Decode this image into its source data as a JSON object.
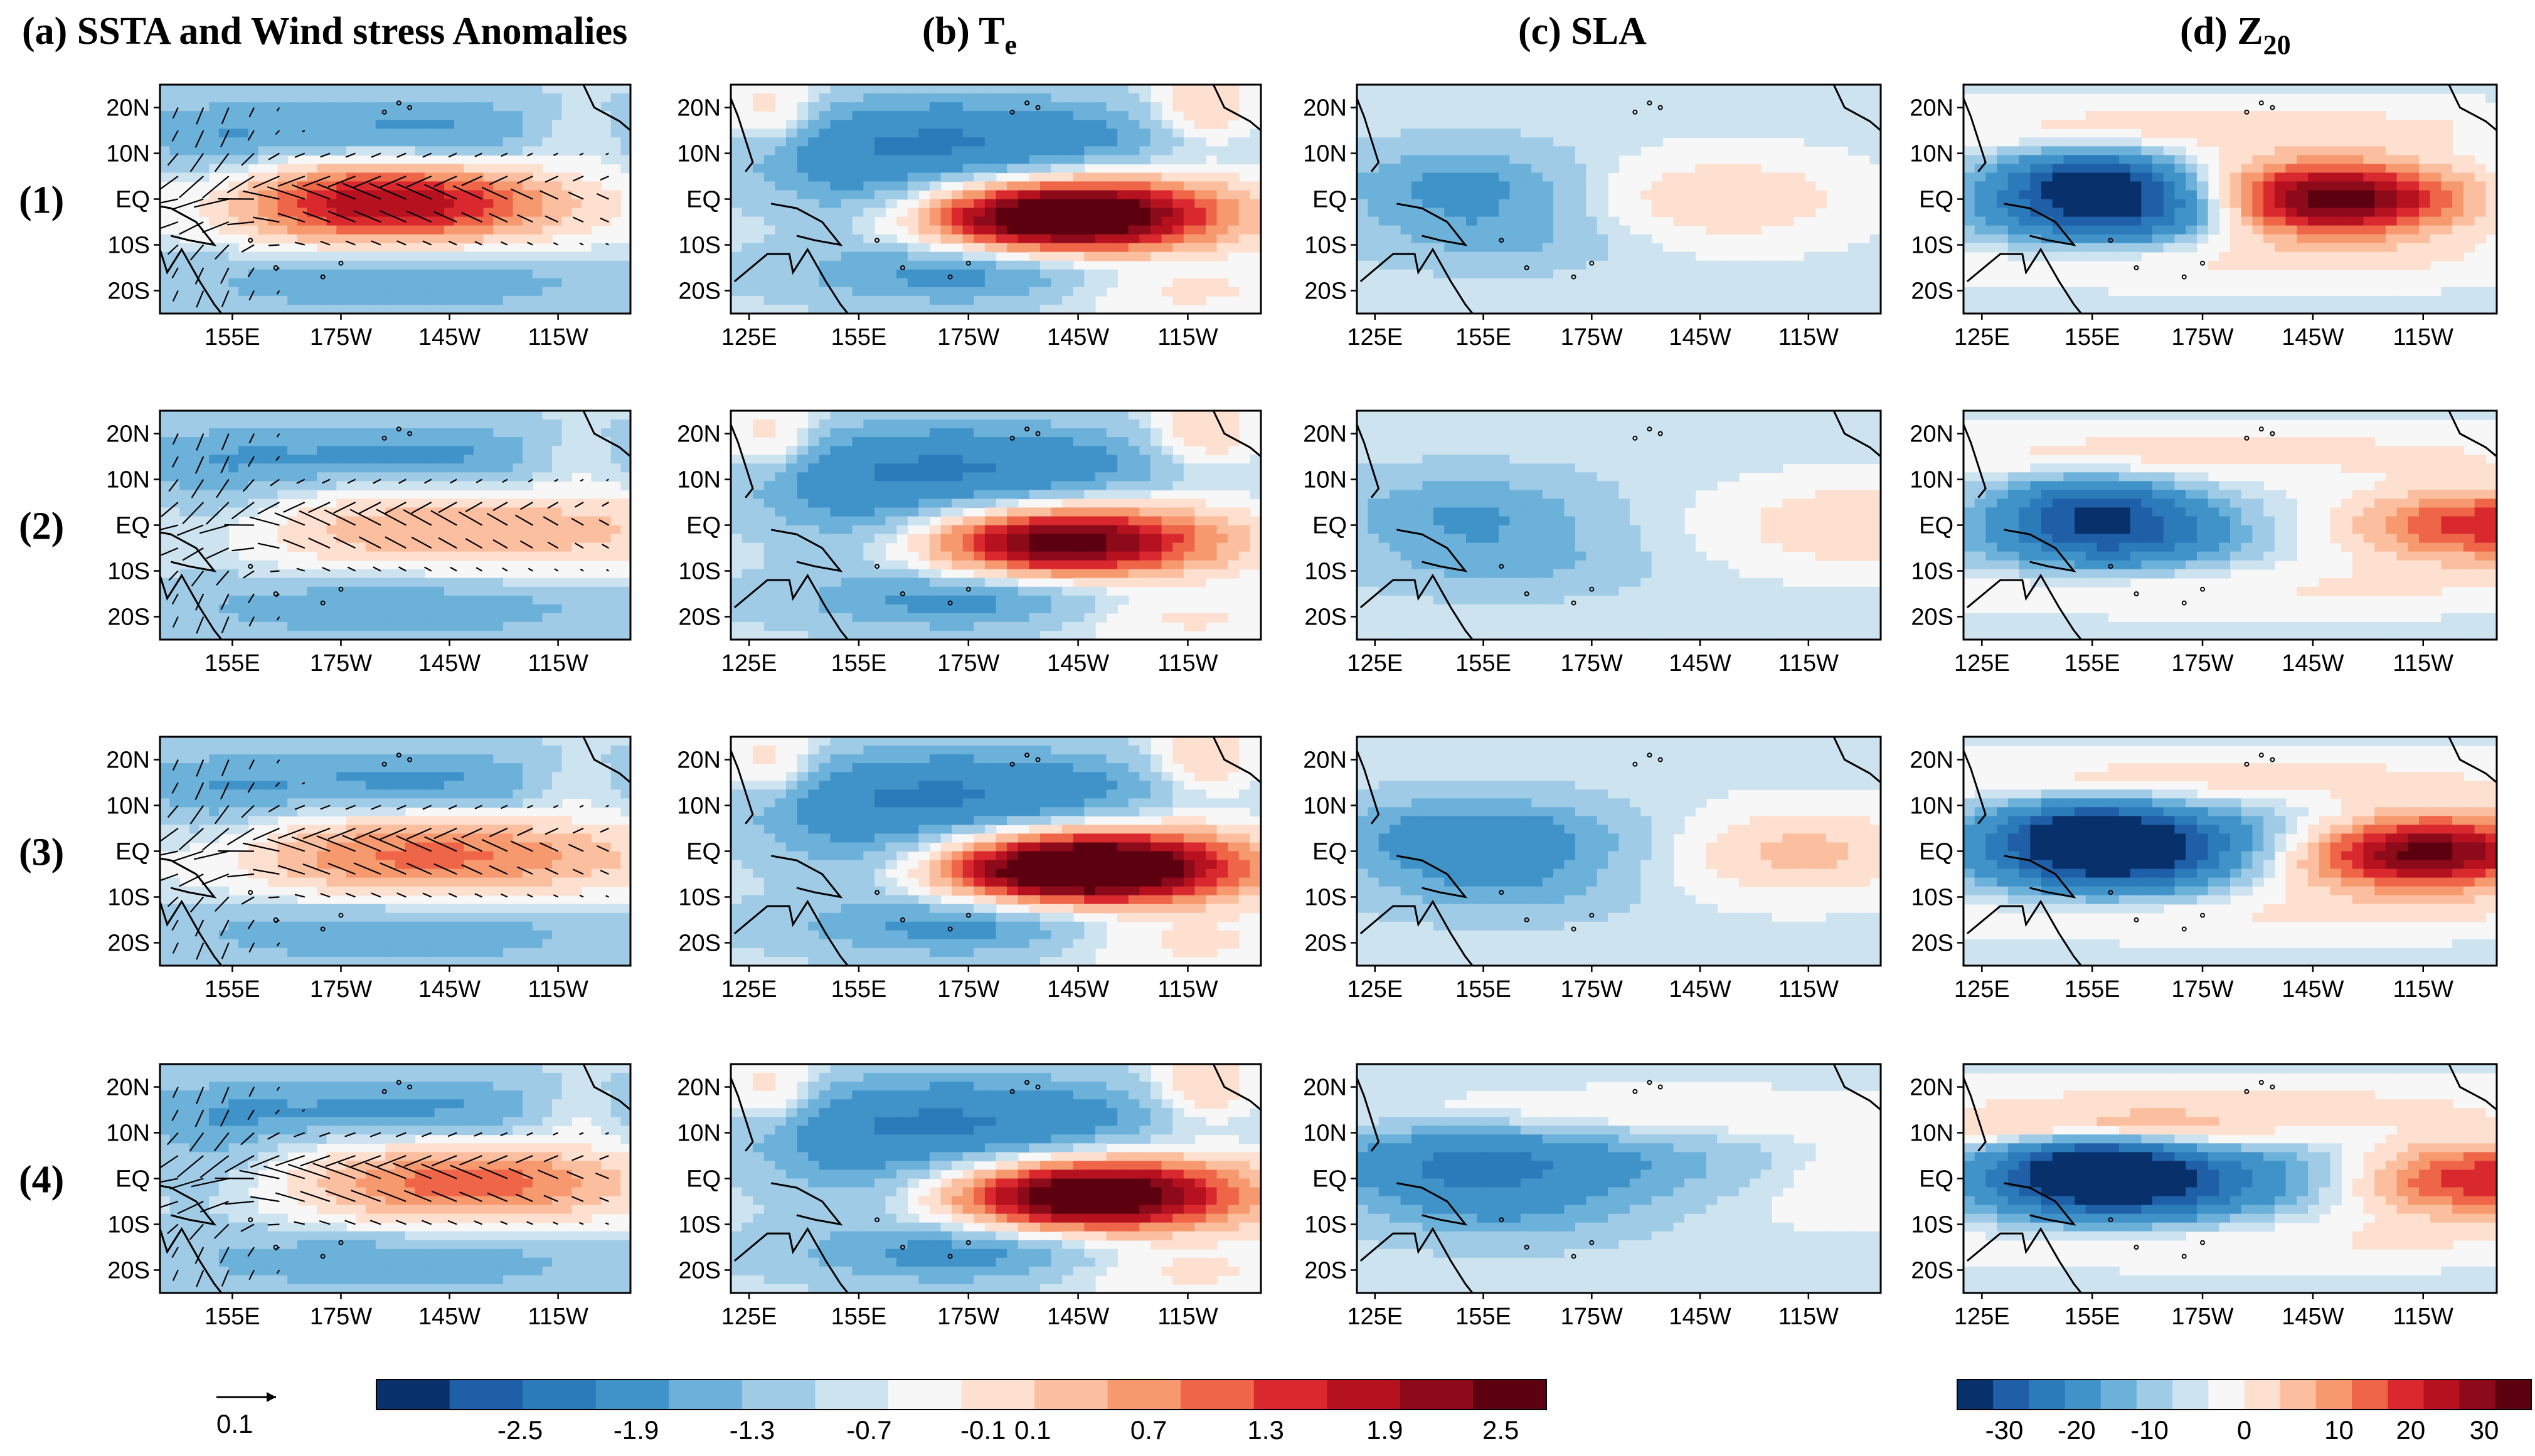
{
  "figure": {
    "columns": [
      {
        "id": "a",
        "prefix": "(a) ",
        "title": "SSTA and Wind stress Anomalies",
        "sub": ""
      },
      {
        "id": "b",
        "prefix": "(b) ",
        "title": "T",
        "sub": "e"
      },
      {
        "id": "c",
        "prefix": "(c) ",
        "title": "SLA",
        "sub": ""
      },
      {
        "id": "d",
        "prefix": "(d) ",
        "title": "Z",
        "sub": "20"
      }
    ],
    "rows": [
      "(1)",
      "(2)",
      "(3)",
      "(4)"
    ],
    "lat_ticks": [
      "20N",
      "10N",
      "EQ",
      "10S",
      "20S"
    ],
    "lon_ticks_a": [
      "155E",
      "175W",
      "145W",
      "115W"
    ],
    "lon_ticks_bcd": [
      "125E",
      "155E",
      "175W",
      "145W",
      "115W"
    ],
    "vector_key": "0.1"
  },
  "chart_data": [
    {
      "type": "heatmap",
      "panel": "SSTA and wind stress anomalies (column a, rows 1-4)",
      "variable": "SSTA",
      "colorbar_levels": [
        -2.5,
        -1.9,
        -1.3,
        -0.7,
        -0.1,
        0.1,
        0.7,
        1.3,
        1.9,
        2.5
      ],
      "colorbar_labels": [
        "-2.5",
        "-1.9",
        "-1.3",
        "-0.7",
        "-0.1",
        "0.1",
        "0.7",
        "1.3",
        "1.9",
        "2.5"
      ],
      "colorbar_colors": [
        "#08306b",
        "#1f5fa8",
        "#2b7bba",
        "#3f93c9",
        "#6cb1da",
        "#9fcbe6",
        "#cde3f0",
        "#f7f7f7",
        "#fde0cf",
        "#fbbfa0",
        "#f7996f",
        "#ef6548",
        "#d9292e",
        "#b5111f",
        "#8c0a1a",
        "#5c0010"
      ],
      "rows": [
        {
          "row": "(1)",
          "warm_peak_lon": "175W-160W",
          "max_value": 2.2
        },
        {
          "row": "(2)",
          "warm_peak_lon": "160W-120W",
          "max_value": 1.0
        },
        {
          "row": "(3)",
          "warm_peak_lon": "160W-140W",
          "max_value": 1.4
        },
        {
          "row": "(4)",
          "warm_peak_lon": "145W-130W",
          "max_value": 1.5
        }
      ]
    },
    {
      "type": "heatmap",
      "panel": "Te (column b, rows 1-4)",
      "variable": "Te",
      "colorbar_levels": [
        -2.5,
        -1.9,
        -1.3,
        -0.7,
        -0.1,
        0.1,
        0.7,
        1.3,
        1.9,
        2.5
      ],
      "rows": [
        {
          "row": "(1)",
          "warm_peak_lon": "165W",
          "max_value": 2.5
        },
        {
          "row": "(2)",
          "warm_peak_lon": "160W",
          "max_value": 2.0
        },
        {
          "row": "(3)",
          "warm_peak_lon": "155W",
          "max_value": 2.7
        },
        {
          "row": "(4)",
          "warm_peak_lon": "155W",
          "max_value": 2.3
        }
      ]
    },
    {
      "type": "heatmap",
      "panel": "SLA (column c, rows 1-4)",
      "variable": "SLA",
      "colorbar_levels": [
        -2.5,
        -1.9,
        -1.3,
        -0.7,
        -0.1,
        0.1,
        0.7,
        1.3,
        1.9,
        2.5
      ],
      "rows": [
        {
          "row": "(1)",
          "warm_peak_lon": "145W",
          "max_value": 0.7
        },
        {
          "row": "(2)",
          "warm_peak_lon": "110W",
          "max_value": 0.7
        },
        {
          "row": "(3)",
          "warm_peak_lon": "135W",
          "max_value": 0.9
        },
        {
          "row": "(4)",
          "warm_peak_lon": "110W",
          "max_value": 0.5
        }
      ]
    },
    {
      "type": "heatmap",
      "panel": "Z20 (column d, rows 1-4)",
      "variable": "Z20",
      "colorbar_levels": [
        -30,
        -20,
        -10,
        0,
        10,
        20,
        30
      ],
      "colorbar_labels": [
        "-30",
        "-20",
        "-10",
        "0",
        "10",
        "20",
        "30"
      ],
      "colorbar_colors": [
        "#08306b",
        "#1f5fa8",
        "#2b7bba",
        "#3f93c9",
        "#6cb1da",
        "#9fcbe6",
        "#cde3f0",
        "#f7f7f7",
        "#fde0cf",
        "#fbbfa0",
        "#f7996f",
        "#ef6548",
        "#d9292e",
        "#b5111f",
        "#8c0a1a",
        "#5c0010"
      ],
      "rows": [
        {
          "row": "(1)",
          "warm_peak_lon": "140W",
          "max_value": 28,
          "min_value": -28
        },
        {
          "row": "(2)",
          "warm_peak_lon": "110W",
          "max_value": 18,
          "min_value": -22
        },
        {
          "row": "(3)",
          "warm_peak_lon": "130W",
          "max_value": 28,
          "min_value": -28
        },
        {
          "row": "(4)",
          "warm_peak_lon": "110W",
          "max_value": 20,
          "min_value": -26
        }
      ]
    }
  ]
}
